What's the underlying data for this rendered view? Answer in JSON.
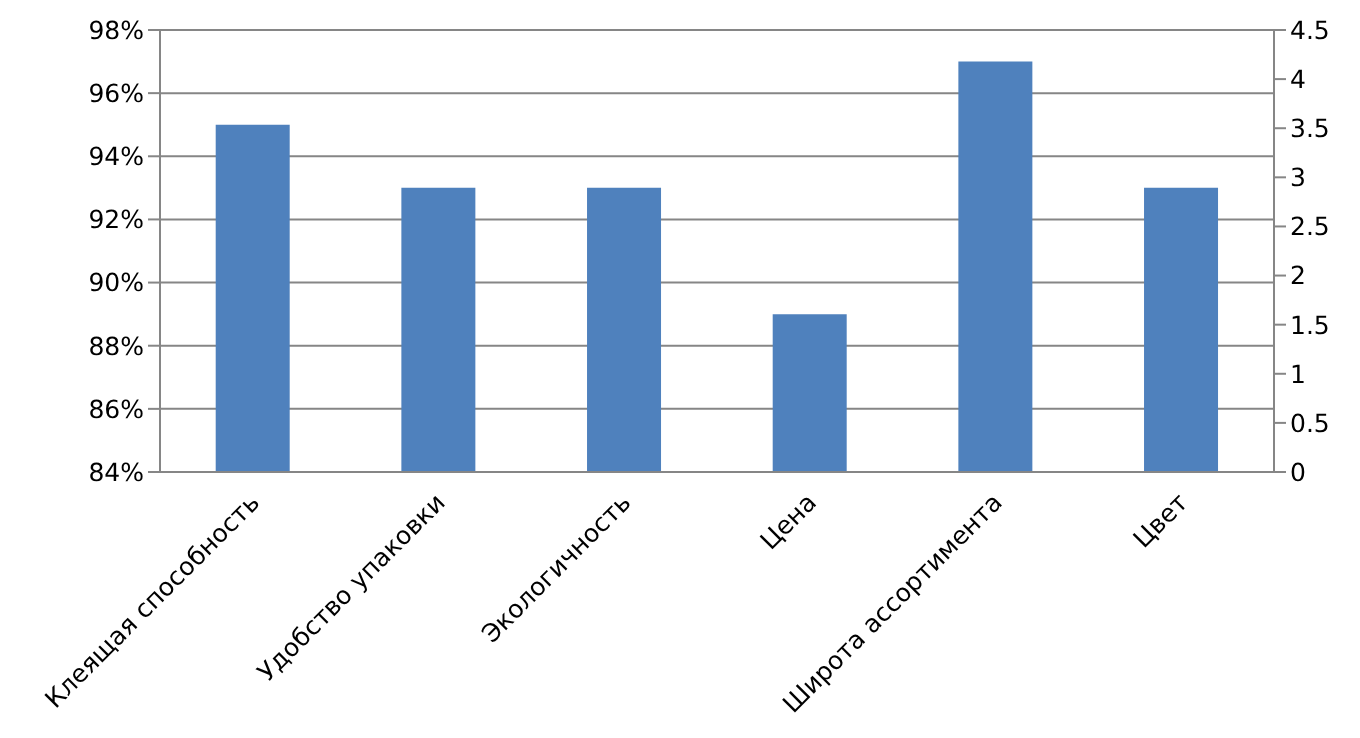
{
  "chart_data": {
    "type": "bar",
    "categories": [
      "Клеящая способность",
      "Удобство упаковки",
      "Экологичность",
      "Цена",
      "Широта ассортимента",
      "Цвет"
    ],
    "series": [
      {
        "color": "#4f81bd",
        "values": [
          95,
          93,
          93,
          89,
          97,
          93
        ]
      }
    ],
    "ylim": [
      84,
      98
    ],
    "yticks": [
      {
        "value": 84,
        "label": "84%"
      },
      {
        "value": 86,
        "label": "86%"
      },
      {
        "value": 88,
        "label": "88%"
      },
      {
        "value": 90,
        "label": "90%"
      },
      {
        "value": 92,
        "label": "92%"
      },
      {
        "value": 94,
        "label": "94%"
      },
      {
        "value": 96,
        "label": "96%"
      },
      {
        "value": 98,
        "label": "98%"
      }
    ],
    "y2lim": [
      0,
      4.5
    ],
    "y2ticks": [
      0,
      0.5,
      1,
      1.5,
      2,
      2.5,
      3,
      3.5,
      4,
      4.5
    ],
    "grid": "y"
  }
}
